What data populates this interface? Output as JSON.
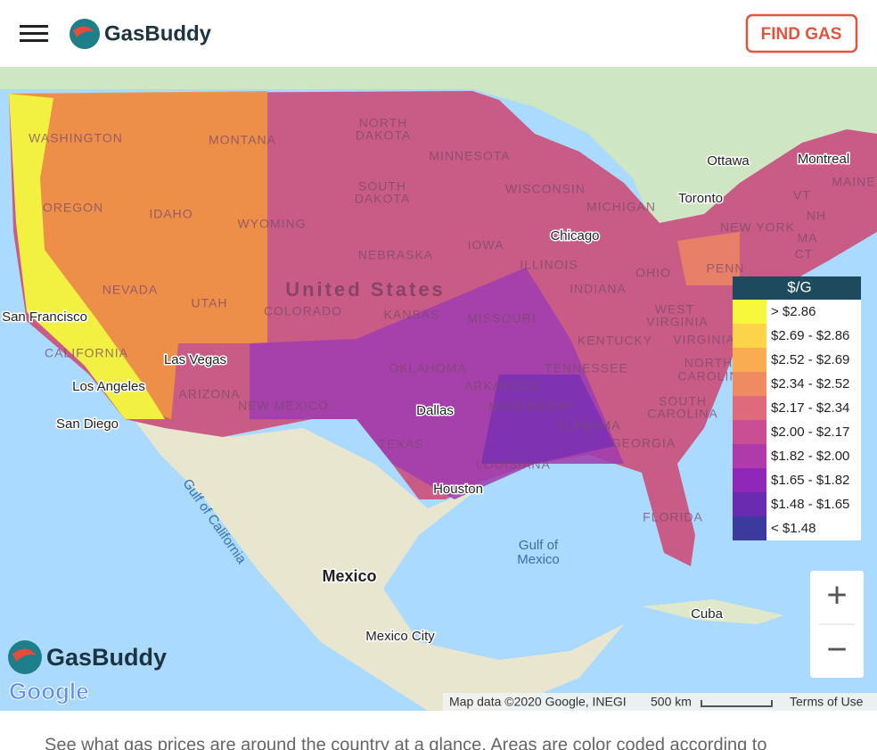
{
  "header": {
    "brand": "GasBuddy",
    "button": "FIND GAS"
  },
  "map": {
    "labels": [
      "WASHINGTON",
      "MONTANA",
      "NORTH",
      "DAKOTA",
      "MINNESOTA",
      "OREGON",
      "IDAHO",
      "WYOMING",
      "SOUTH",
      "DAKOTA",
      "WISCONSIN",
      "MICHIGAN",
      "IOWA",
      "NEBRASKA",
      "ILLINOIS",
      "INDIANA",
      "OHIO",
      "PENN",
      "NEW YORK",
      "VT",
      "NH",
      "MA",
      "CT",
      "MAINE",
      "NEVADA",
      "UTAH",
      "COLORADO",
      "United States",
      "KANSAS",
      "MISSOURI",
      "WEST",
      "VIRGINIA",
      "KENTUCKY",
      "VIRGINIA",
      "CALIFORNIA",
      "OKLAHOMA",
      "ARKANSAS",
      "TENNESSEE",
      "NORTH",
      "CAROLINA",
      "SOUTH",
      "CAROLINA",
      "ARIZONA",
      "NEW MEXICO",
      "MISSISSIPPI",
      "ALABAMA",
      "GEORGIA",
      "TEXAS",
      "LOUISIANA",
      "FLORIDA",
      "Gulf of",
      "Mexico",
      "Gulf of California",
      "Mexico",
      "Mexico City",
      "Cuba",
      "Ottawa",
      "Montreal",
      "Toronto",
      "Chicago",
      "San Francisco",
      "Las Vegas",
      "Los Angeles",
      "San Diego",
      "Dallas",
      "Houston"
    ]
  },
  "legend": {
    "title": "$/G",
    "items": [
      {
        "label": "> $2.86",
        "color": "#f7f73c"
      },
      {
        "label": "$2.69 - $2.86",
        "color": "#fcd449"
      },
      {
        "label": "$2.52 - $2.69",
        "color": "#fbab50"
      },
      {
        "label": "$2.34 - $2.52",
        "color": "#f08a62"
      },
      {
        "label": "$2.17 - $2.34",
        "color": "#de6a7b"
      },
      {
        "label": "$2.00 - $2.17",
        "color": "#c94f93"
      },
      {
        "label": "$1.82 - $2.00",
        "color": "#af3bab"
      },
      {
        "label": "$1.65 - $1.82",
        "color": "#9127b8"
      },
      {
        "label": "$1.48 - $1.65",
        "color": "#6a2bb0"
      },
      {
        "label": "< $1.48",
        "color": "#3d3a9e"
      }
    ]
  },
  "zoom": {
    "in": "+",
    "out": "−"
  },
  "attribution": {
    "logo": "GasBuddy",
    "google": "Google",
    "map_data": "Map data ©2020 Google, INEGI",
    "scale": "500 km",
    "terms": "Terms of Use"
  },
  "intro": "See what gas prices are around the country at a glance. Areas are color coded according to"
}
